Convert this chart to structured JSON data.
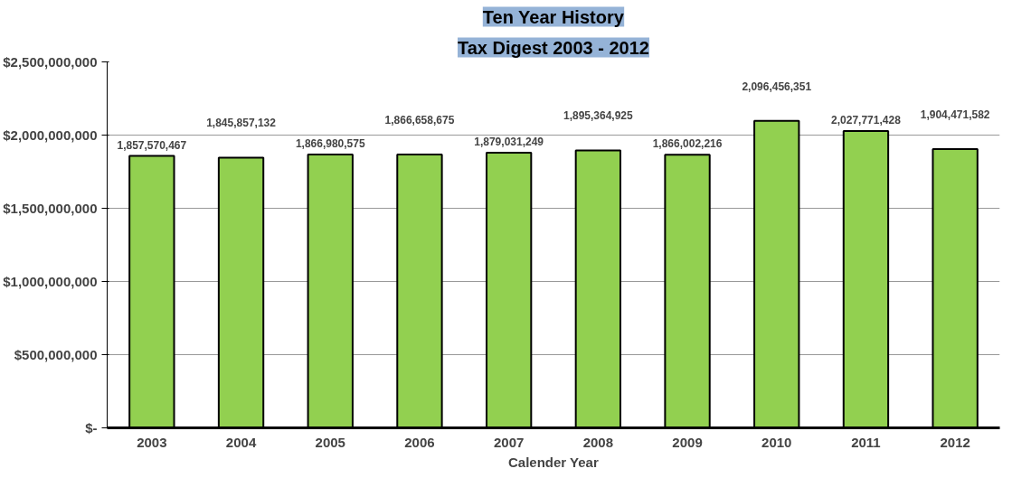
{
  "chart_data": {
    "type": "bar",
    "title": "Ten Year History",
    "subtitle": "Tax Digest 2003 - 2012",
    "xlabel": "Calender Year",
    "categories": [
      "2003",
      "2004",
      "2005",
      "2006",
      "2007",
      "2008",
      "2009",
      "2010",
      "2011",
      "2012"
    ],
    "values": [
      1857570467,
      1845857132,
      1866980575,
      1866658675,
      1879031249,
      1895364925,
      1866002216,
      2096456351,
      2027771428,
      1904471582
    ],
    "value_labels": [
      "1,857,570,467",
      "1,845,857,132",
      "1,866,980,575",
      "1,866,658,675",
      "1,879,031,249",
      "1,895,364,925",
      "1,866,002,216",
      "2,096,456,351",
      "2,027,771,428",
      "1,904,471,582"
    ],
    "color": "#92d050",
    "ylim": [
      0,
      2500000000
    ],
    "yticks": [
      {
        "value": 0,
        "label": "$-"
      },
      {
        "value": 500000000,
        "label": "$500,000,000"
      },
      {
        "value": 1000000000,
        "label": "$1,000,000,000"
      },
      {
        "value": 1500000000,
        "label": "$1,500,000,000"
      },
      {
        "value": 2000000000,
        "label": "$2,000,000,000"
      },
      {
        "value": 2500000000,
        "label": "$2,500,000,000"
      }
    ],
    "grid": "y"
  }
}
